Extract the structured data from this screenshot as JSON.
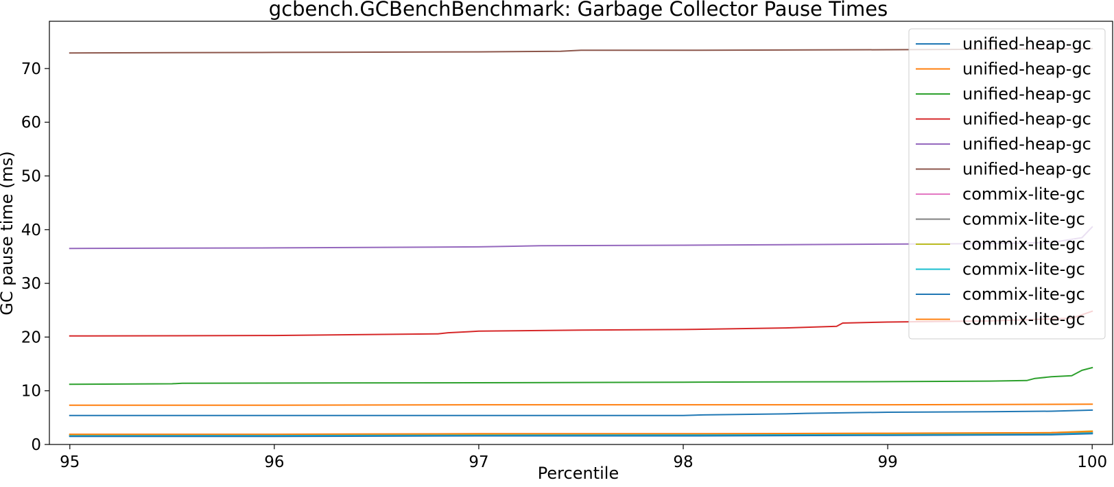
{
  "chart_data": {
    "type": "line",
    "title": "gcbench.GCBenchBenchmark: Garbage Collector Pause Times",
    "xlabel": "Percentile",
    "ylabel": "GC pause time (ms)",
    "xlim": [
      94.9,
      100.1
    ],
    "ylim": [
      0,
      78.8
    ],
    "xticks": [
      95,
      96,
      97,
      98,
      99,
      100
    ],
    "yticks": [
      0,
      10,
      20,
      30,
      40,
      50,
      60,
      70
    ],
    "grid": false,
    "legend_position": "top-right",
    "series": [
      {
        "name": "unified-heap-gc",
        "color": "#1f77b4",
        "x": [
          95,
          96,
          97,
          98,
          98.1,
          98.5,
          98.6,
          98.8,
          99,
          99.5,
          99.8,
          100
        ],
        "y": [
          5.4,
          5.4,
          5.4,
          5.4,
          5.5,
          5.7,
          5.8,
          5.9,
          6.0,
          6.1,
          6.2,
          6.4
        ]
      },
      {
        "name": "unified-heap-gc",
        "color": "#ff7f0e",
        "x": [
          95,
          96,
          97,
          98,
          99,
          100
        ],
        "y": [
          7.3,
          7.3,
          7.4,
          7.4,
          7.4,
          7.5
        ]
      },
      {
        "name": "unified-heap-gc",
        "color": "#2ca02c",
        "x": [
          95,
          95.5,
          95.55,
          97,
          98,
          99,
          99.5,
          99.68,
          99.72,
          99.8,
          99.9,
          99.95,
          100
        ],
        "y": [
          11.2,
          11.3,
          11.4,
          11.5,
          11.6,
          11.7,
          11.8,
          11.9,
          12.3,
          12.6,
          12.8,
          13.8,
          14.3
        ]
      },
      {
        "name": "unified-heap-gc",
        "color": "#d62728",
        "x": [
          95,
          96,
          96.8,
          96.85,
          96.9,
          96.95,
          97,
          97.5,
          98,
          98.5,
          98.75,
          98.78,
          99,
          99.5,
          99.9,
          100
        ],
        "y": [
          20.2,
          20.3,
          20.6,
          20.8,
          20.9,
          21.0,
          21.1,
          21.3,
          21.4,
          21.7,
          22.0,
          22.6,
          22.8,
          23.0,
          23.5,
          24.8
        ]
      },
      {
        "name": "unified-heap-gc",
        "color": "#9467bd",
        "x": [
          95,
          96,
          97,
          97.3,
          98,
          99,
          99.5,
          99.8,
          99.95,
          100
        ],
        "y": [
          36.5,
          36.6,
          36.8,
          37.0,
          37.1,
          37.3,
          37.4,
          37.6,
          38.5,
          40.5
        ]
      },
      {
        "name": "unified-heap-gc",
        "color": "#8c564b",
        "x": [
          95,
          96,
          97,
          97.4,
          97.5,
          98,
          99,
          100
        ],
        "y": [
          72.9,
          73.0,
          73.1,
          73.2,
          73.4,
          73.4,
          73.5,
          73.7
        ]
      },
      {
        "name": "commix-lite-gc",
        "color": "#e377c2",
        "x": [
          95,
          96,
          97,
          98,
          99,
          99.8,
          100
        ],
        "y": [
          1.7,
          1.7,
          1.8,
          1.8,
          1.9,
          2.0,
          2.2
        ]
      },
      {
        "name": "commix-lite-gc",
        "color": "#7f7f7f",
        "x": [
          95,
          96,
          97,
          98,
          99,
          99.8,
          100
        ],
        "y": [
          1.6,
          1.6,
          1.7,
          1.7,
          1.8,
          1.9,
          2.1
        ]
      },
      {
        "name": "commix-lite-gc",
        "color": "#bcbd22",
        "x": [
          95,
          96,
          97,
          98,
          99,
          99.8,
          100
        ],
        "y": [
          1.8,
          1.8,
          1.9,
          1.9,
          2.0,
          2.2,
          2.5
        ]
      },
      {
        "name": "commix-lite-gc",
        "color": "#17becf",
        "x": [
          95,
          96,
          97,
          98,
          99,
          99.8,
          100
        ],
        "y": [
          1.6,
          1.7,
          1.7,
          1.8,
          1.8,
          1.9,
          2.2
        ]
      },
      {
        "name": "commix-lite-gc",
        "color": "#1f77b4",
        "x": [
          95,
          96,
          97,
          98,
          99,
          99.8,
          100
        ],
        "y": [
          1.5,
          1.5,
          1.6,
          1.6,
          1.7,
          1.8,
          2.0
        ]
      },
      {
        "name": "commix-lite-gc",
        "color": "#ff7f0e",
        "x": [
          95,
          96,
          97,
          98,
          99,
          99.8,
          100
        ],
        "y": [
          1.9,
          1.9,
          2.0,
          2.0,
          2.1,
          2.2,
          2.4
        ]
      }
    ]
  }
}
